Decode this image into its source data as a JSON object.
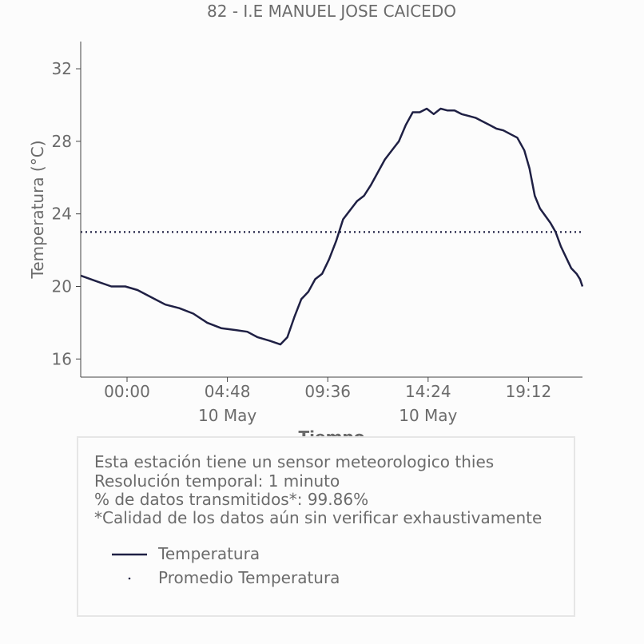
{
  "chart_data": {
    "type": "line",
    "title": "82 - I.E MANUEL JOSE CAICEDO",
    "xlabel": "Tiempo",
    "ylabel": "Temperatura (°C)",
    "x_start": "2024-05-09 21:47",
    "x_end": "2024-05-10 21:47",
    "ylim": [
      15,
      33.5
    ],
    "yticks": [
      16,
      20,
      24,
      28,
      32
    ],
    "xticks": [
      {
        "time": "2024-05-10 00:00",
        "label": "00:00",
        "sublabel": ""
      },
      {
        "time": "2024-05-10 04:48",
        "label": "04:48",
        "sublabel": "10 May"
      },
      {
        "time": "2024-05-10 09:36",
        "label": "09:36",
        "sublabel": ""
      },
      {
        "time": "2024-05-10 14:24",
        "label": "14:24",
        "sublabel": "10 May"
      },
      {
        "time": "2024-05-10 19:12",
        "label": "19:12",
        "sublabel": ""
      }
    ],
    "grid": false,
    "series": [
      {
        "name": "Temperatura",
        "color": "#1f2044",
        "points": [
          [
            "2024-05-09 21:47",
            20.6
          ],
          [
            "2024-05-09 22:30",
            20.3
          ],
          [
            "2024-05-09 23:15",
            20.0
          ],
          [
            "2024-05-09 23:55",
            20.0
          ],
          [
            "2024-05-10 00:30",
            19.8
          ],
          [
            "2024-05-10 01:10",
            19.4
          ],
          [
            "2024-05-10 01:50",
            19.0
          ],
          [
            "2024-05-10 02:30",
            18.8
          ],
          [
            "2024-05-10 03:10",
            18.5
          ],
          [
            "2024-05-10 03:50",
            18.0
          ],
          [
            "2024-05-10 04:30",
            17.7
          ],
          [
            "2024-05-10 05:10",
            17.6
          ],
          [
            "2024-05-10 05:45",
            17.5
          ],
          [
            "2024-05-10 06:15",
            17.2
          ],
          [
            "2024-05-10 06:50",
            17.0
          ],
          [
            "2024-05-10 07:20",
            16.8
          ],
          [
            "2024-05-10 07:40",
            17.2
          ],
          [
            "2024-05-10 08:00",
            18.3
          ],
          [
            "2024-05-10 08:20",
            19.3
          ],
          [
            "2024-05-10 08:40",
            19.7
          ],
          [
            "2024-05-10 09:00",
            20.4
          ],
          [
            "2024-05-10 09:20",
            20.7
          ],
          [
            "2024-05-10 09:40",
            21.5
          ],
          [
            "2024-05-10 10:00",
            22.5
          ],
          [
            "2024-05-10 10:20",
            23.7
          ],
          [
            "2024-05-10 10:40",
            24.2
          ],
          [
            "2024-05-10 11:00",
            24.7
          ],
          [
            "2024-05-10 11:20",
            25.0
          ],
          [
            "2024-05-10 11:40",
            25.6
          ],
          [
            "2024-05-10 12:00",
            26.3
          ],
          [
            "2024-05-10 12:20",
            27.0
          ],
          [
            "2024-05-10 12:40",
            27.5
          ],
          [
            "2024-05-10 13:00",
            28.0
          ],
          [
            "2024-05-10 13:20",
            28.9
          ],
          [
            "2024-05-10 13:40",
            29.6
          ],
          [
            "2024-05-10 14:00",
            29.6
          ],
          [
            "2024-05-10 14:20",
            29.8
          ],
          [
            "2024-05-10 14:40",
            29.5
          ],
          [
            "2024-05-10 15:00",
            29.8
          ],
          [
            "2024-05-10 15:20",
            29.7
          ],
          [
            "2024-05-10 15:40",
            29.7
          ],
          [
            "2024-05-10 16:00",
            29.5
          ],
          [
            "2024-05-10 16:20",
            29.4
          ],
          [
            "2024-05-10 16:40",
            29.3
          ],
          [
            "2024-05-10 17:00",
            29.1
          ],
          [
            "2024-05-10 17:20",
            28.9
          ],
          [
            "2024-05-10 17:40",
            28.7
          ],
          [
            "2024-05-10 18:00",
            28.6
          ],
          [
            "2024-05-10 18:20",
            28.4
          ],
          [
            "2024-05-10 18:40",
            28.2
          ],
          [
            "2024-05-10 19:00",
            27.5
          ],
          [
            "2024-05-10 19:15",
            26.5
          ],
          [
            "2024-05-10 19:30",
            25.0
          ],
          [
            "2024-05-10 19:45",
            24.3
          ],
          [
            "2024-05-10 20:00",
            23.9
          ],
          [
            "2024-05-10 20:15",
            23.5
          ],
          [
            "2024-05-10 20:30",
            23.0
          ],
          [
            "2024-05-10 20:45",
            22.2
          ],
          [
            "2024-05-10 21:00",
            21.6
          ],
          [
            "2024-05-10 21:15",
            21.0
          ],
          [
            "2024-05-10 21:30",
            20.7
          ],
          [
            "2024-05-10 21:40",
            20.4
          ],
          [
            "2024-05-10 21:47",
            20.0
          ]
        ]
      },
      {
        "name": "Promedio Temperatura",
        "color": "#1f2044",
        "style": "dotted",
        "value": 23.0
      }
    ]
  },
  "info": {
    "line1": "Esta estación tiene un sensor meteorologico thies",
    "line2": "Resolución temporal: 1 minuto",
    "line3": "% de datos transmitidos*: 99.86%",
    "line4": "*Calidad de los datos aún sin verificar exhaustivamente"
  },
  "legend": {
    "items": [
      {
        "label": "Temperatura",
        "symbol": "line"
      },
      {
        "label": "Promedio Temperatura",
        "symbol": "dot"
      }
    ],
    "color": "#1f2044"
  }
}
